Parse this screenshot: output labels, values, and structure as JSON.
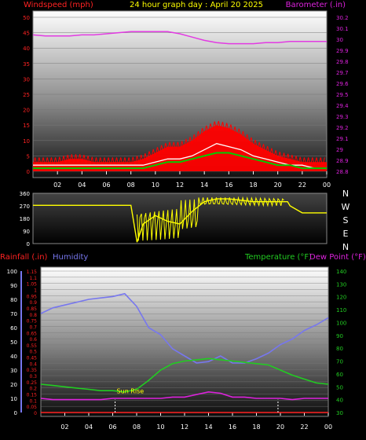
{
  "title": "24 hour graph day : April 20 2025",
  "colors": {
    "wind": "#ff0000",
    "gust_fill": "#ff0000",
    "avg_wind": "#ffffff",
    "gust_avg": "#00cc00",
    "barometer": "#e23be2",
    "direction": "#ffff00",
    "rainfall": "#ff2222",
    "humidity": "#7777ee",
    "temperature": "#22cc22",
    "dewpoint": "#dd22dd",
    "tick_text": "#ffffff",
    "axis_left_label": "#ff2222",
    "axis_right_label": "#dd22dd"
  },
  "chart_data": [
    {
      "type": "line",
      "panel": "wind_pressure",
      "left_axis_label": "Windspeed (mph)",
      "right_axis_label": "Barometer (.in)",
      "left_ticks": [
        "0",
        "5",
        "10",
        "15",
        "20",
        "25",
        "30",
        "35",
        "40",
        "45",
        "50"
      ],
      "right_ticks": [
        "28.8",
        "28.9",
        "29",
        "29.1",
        "29.2",
        "29.3",
        "29.4",
        "29.5",
        "29.6",
        "29.7",
        "29.8",
        "29.9",
        "30",
        "30.1",
        "30.2"
      ],
      "ylim_left": [
        0,
        50
      ],
      "ylim_right": [
        28.8,
        30.2
      ],
      "x_ticks": [
        "02",
        "04",
        "06",
        "08",
        "10",
        "12",
        "14",
        "16",
        "18",
        "20",
        "22",
        "00"
      ],
      "x_hours": [
        0,
        1,
        2,
        3,
        4,
        5,
        6,
        7,
        8,
        9,
        10,
        11,
        12,
        13,
        14,
        15,
        16,
        17,
        18,
        19,
        20,
        21,
        22,
        23,
        24
      ],
      "series": [
        {
          "name": "gust",
          "values": [
            3,
            3,
            3,
            4,
            4,
            3,
            3,
            3,
            3,
            4,
            6,
            8,
            8,
            10,
            13,
            15,
            14,
            12,
            9,
            7,
            5,
            4,
            3,
            3,
            3
          ]
        },
        {
          "name": "wind",
          "values": [
            2,
            2,
            2,
            2,
            2,
            2,
            2,
            2,
            2,
            2,
            3,
            4,
            4,
            5,
            7,
            9,
            8,
            7,
            5,
            4,
            3,
            2,
            2,
            1,
            1
          ]
        },
        {
          "name": "avg",
          "values": [
            1,
            1,
            1,
            1,
            1,
            1,
            1,
            1,
            1,
            1,
            2,
            3,
            3,
            4,
            5,
            6,
            6,
            5,
            4,
            3,
            2,
            2,
            1,
            1,
            1
          ]
        },
        {
          "name": "barometer",
          "values": [
            30.04,
            30.03,
            30.03,
            30.03,
            30.04,
            30.04,
            30.05,
            30.06,
            30.07,
            30.07,
            30.07,
            30.07,
            30.05,
            30.02,
            29.99,
            29.97,
            29.96,
            29.96,
            29.96,
            29.97,
            29.97,
            29.98,
            29.98,
            29.98,
            29.98
          ]
        }
      ]
    },
    {
      "type": "line",
      "panel": "wind_direction",
      "left_ticks": [
        "0",
        "90",
        "180",
        "270",
        "360"
      ],
      "right_labels": [
        "N",
        "W",
        "S",
        "E",
        "N"
      ],
      "ylim": [
        0,
        360
      ],
      "x_hours": [
        0,
        1,
        2,
        3,
        4,
        5,
        6,
        7,
        8,
        8.5,
        9,
        10,
        11,
        12,
        13,
        14,
        15,
        16,
        17,
        18,
        19,
        20,
        20.8,
        21,
        22,
        23,
        24
      ],
      "values": [
        274,
        274,
        274,
        274,
        274,
        274,
        274,
        274,
        274,
        10,
        140,
        200,
        160,
        140,
        230,
        300,
        320,
        320,
        310,
        300,
        300,
        300,
        300,
        270,
        220,
        220,
        220
      ]
    },
    {
      "type": "line",
      "panel": "temp_humidity_rain",
      "left_axis_label": "Rainfall (.in)",
      "left_axis_label2": "Humidity",
      "right_axis_label": "Temperature (°F)",
      "right_axis_label2": "Dew Point (°F)",
      "left_ticks_hum": [
        "0",
        "10",
        "20",
        "30",
        "40",
        "50",
        "60",
        "70",
        "80",
        "90",
        "100"
      ],
      "left_ticks_rain": [
        "0",
        "0.05",
        "0.1",
        "0.15",
        "0.2",
        "0.25",
        "0.3",
        "0.35",
        "0.4",
        "0.45",
        "0.5",
        "0.55",
        "0.6",
        "0.65",
        "0.7",
        "0.75",
        "0.8",
        "0.85",
        "0.9",
        "0.95",
        "1",
        "1.05",
        "1.1",
        "1.15"
      ],
      "right_ticks": [
        "30",
        "40",
        "50",
        "60",
        "70",
        "80",
        "90",
        "100",
        "110",
        "120",
        "130",
        "140"
      ],
      "ylim_humidity": [
        0,
        100
      ],
      "ylim_rain": [
        0,
        1.15
      ],
      "ylim_temp": [
        30,
        140
      ],
      "x_ticks": [
        "02",
        "04",
        "06",
        "08",
        "10",
        "12",
        "14",
        "16",
        "18",
        "20",
        "22",
        "00"
      ],
      "annotation": "Sun Rise",
      "x_hours": [
        0,
        1,
        2,
        3,
        4,
        5,
        6,
        7,
        8,
        9,
        10,
        11,
        12,
        13,
        14,
        15,
        16,
        17,
        18,
        19,
        20,
        21,
        22,
        23,
        24
      ],
      "series": [
        {
          "name": "humidity",
          "values": [
            70,
            74,
            76,
            78,
            80,
            81,
            82,
            84,
            75,
            60,
            55,
            45,
            40,
            35,
            36,
            40,
            35,
            35,
            38,
            42,
            48,
            52,
            58,
            62,
            67
          ]
        },
        {
          "name": "temperature",
          "values": [
            52,
            51,
            50,
            49,
            48,
            47,
            47,
            46,
            48,
            55,
            63,
            68,
            70,
            71,
            72,
            71,
            70,
            69,
            68,
            67,
            63,
            59,
            56,
            53,
            52
          ]
        },
        {
          "name": "dewpoint",
          "values": [
            41,
            40,
            40,
            40,
            40,
            40,
            41,
            41,
            41,
            41,
            41,
            42,
            42,
            44,
            46,
            45,
            42,
            42,
            41,
            41,
            41,
            40,
            41,
            41,
            41
          ]
        },
        {
          "name": "rainfall",
          "values": [
            0,
            0,
            0,
            0,
            0,
            0,
            0,
            0,
            0,
            0,
            0,
            0,
            0,
            0,
            0,
            0,
            0,
            0,
            0,
            0,
            0,
            0,
            0,
            0,
            0
          ]
        }
      ]
    }
  ]
}
